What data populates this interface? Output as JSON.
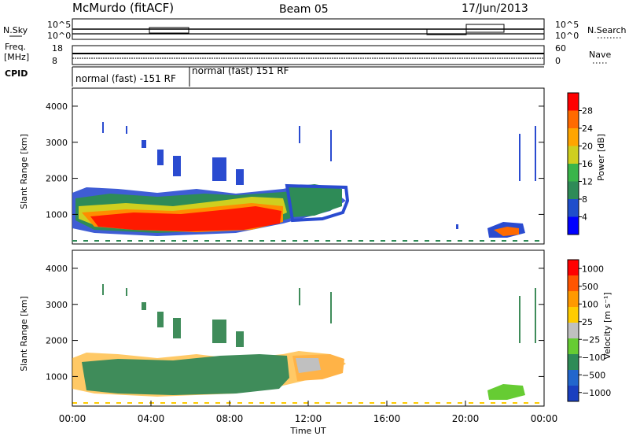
{
  "header": {
    "station": "McMurdo (fitACF)",
    "beam": "Beam 05",
    "date": "17/Jun/2013"
  },
  "chart_data": [
    {
      "type": "line",
      "ylabel_left": "N.Sky",
      "ylabel_right": "N.Search",
      "yticks_left": [
        "10^5",
        "10^0"
      ],
      "yticks_right": [
        "10^5",
        "10^0"
      ]
    },
    {
      "type": "line",
      "ylabel_left": "Freq.\n[MHz]",
      "ylabel_right": "Nave",
      "yticks_left": [
        "18",
        "8"
      ],
      "yticks_right": [
        "60",
        "0"
      ]
    },
    {
      "type": "table",
      "ylabel": "CPID",
      "segments": [
        {
          "label": "normal (fast) -151 RF",
          "start_h": 0,
          "end_h": 6
        },
        {
          "label": "normal (fast) 151 RF",
          "start_h": 6,
          "end_h": 24
        }
      ]
    },
    {
      "type": "heatmap",
      "ylabel": "Slant Range [km]",
      "yticks": [
        1000,
        2000,
        3000,
        4000
      ],
      "ylim": [
        180,
        4500
      ],
      "colorbar_label": "Power [dB]",
      "colorbar_ticks": [
        "4",
        "8",
        "12",
        "16",
        "20",
        "24",
        "28"
      ],
      "colorbar_colors": [
        "#0000ff",
        "#1f4ecb",
        "#2e8b57",
        "#39b54a",
        "#cfcf1f",
        "#ffa500",
        "#ff6a00",
        "#ff0000"
      ]
    },
    {
      "type": "heatmap",
      "ylabel": "Slant Range [km]",
      "yticks": [
        1000,
        2000,
        3000,
        4000
      ],
      "ylim": [
        180,
        4500
      ],
      "xlabel": "Time UT",
      "xticks": [
        "00:00",
        "04:00",
        "08:00",
        "12:00",
        "16:00",
        "20:00",
        "00:00"
      ],
      "xlim_h": [
        0,
        24
      ],
      "colorbar_label": "Velocity [m s⁻¹]",
      "colorbar_ticks": [
        "1000",
        "500",
        "100",
        "25",
        "−25",
        "−100",
        "−500",
        "−1000"
      ],
      "colorbar_colors": [
        "#1a3fbf",
        "#2266cc",
        "#2e8b57",
        "#66cc33",
        "#c0c0c0",
        "#ffcc00",
        "#ff9900",
        "#ff5500",
        "#ff0000"
      ]
    }
  ]
}
